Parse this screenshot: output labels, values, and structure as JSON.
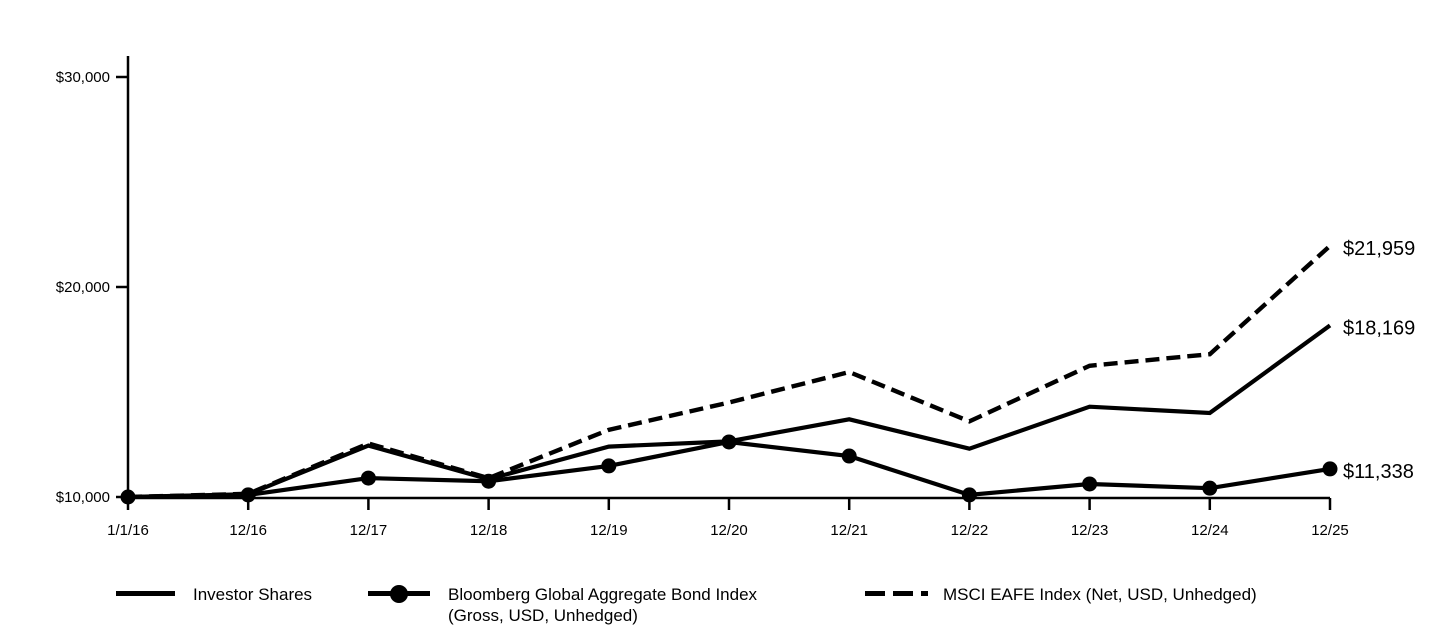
{
  "chart_data": {
    "type": "line",
    "categories": [
      "1/1/16",
      "12/16",
      "12/17",
      "12/18",
      "12/19",
      "12/20",
      "12/21",
      "12/22",
      "12/23",
      "12/24",
      "12/25"
    ],
    "series": [
      {
        "name": "Investor Shares",
        "style": "solid",
        "values": [
          10000,
          10130,
          12450,
          10850,
          12400,
          12650,
          13700,
          12300,
          14300,
          14000,
          18169
        ],
        "end_label": "$18,169"
      },
      {
        "name": "Bloomberg Global Aggregate Bond Index (Gross, USD, Unhedged)",
        "style": "solid-with-markers",
        "values": [
          10000,
          10100,
          10900,
          10750,
          11480,
          12620,
          11950,
          10100,
          10620,
          10420,
          11338
        ],
        "end_label": "$11,338"
      },
      {
        "name": "MSCI EAFE Index (Net, USD, Unhedged)",
        "style": "dashed",
        "values": [
          10000,
          10150,
          12550,
          10900,
          13200,
          14500,
          15950,
          13600,
          16250,
          16800,
          21959
        ],
        "end_label": "$21,959"
      }
    ],
    "y_ticks": [
      {
        "value": 10000,
        "label": "$10,000"
      },
      {
        "value": 20000,
        "label": "$20,000"
      },
      {
        "value": 30000,
        "label": "$30,000"
      }
    ],
    "ylim": [
      10000,
      30000
    ],
    "xlabel": "",
    "ylabel": "",
    "grid": false,
    "legend_position": "bottom",
    "colors": {
      "line": "#000000",
      "background": "#ffffff"
    }
  },
  "legend": {
    "items": [
      {
        "label": "Investor Shares",
        "label_line2": "",
        "swatch": "solid-line"
      },
      {
        "label": "Bloomberg Global Aggregate Bond Index",
        "label_line2": "(Gross, USD, Unhedged)",
        "swatch": "line-with-dot"
      },
      {
        "label": "MSCI EAFE Index (Net, USD, Unhedged)",
        "label_line2": "",
        "swatch": "dashed-line"
      }
    ]
  }
}
